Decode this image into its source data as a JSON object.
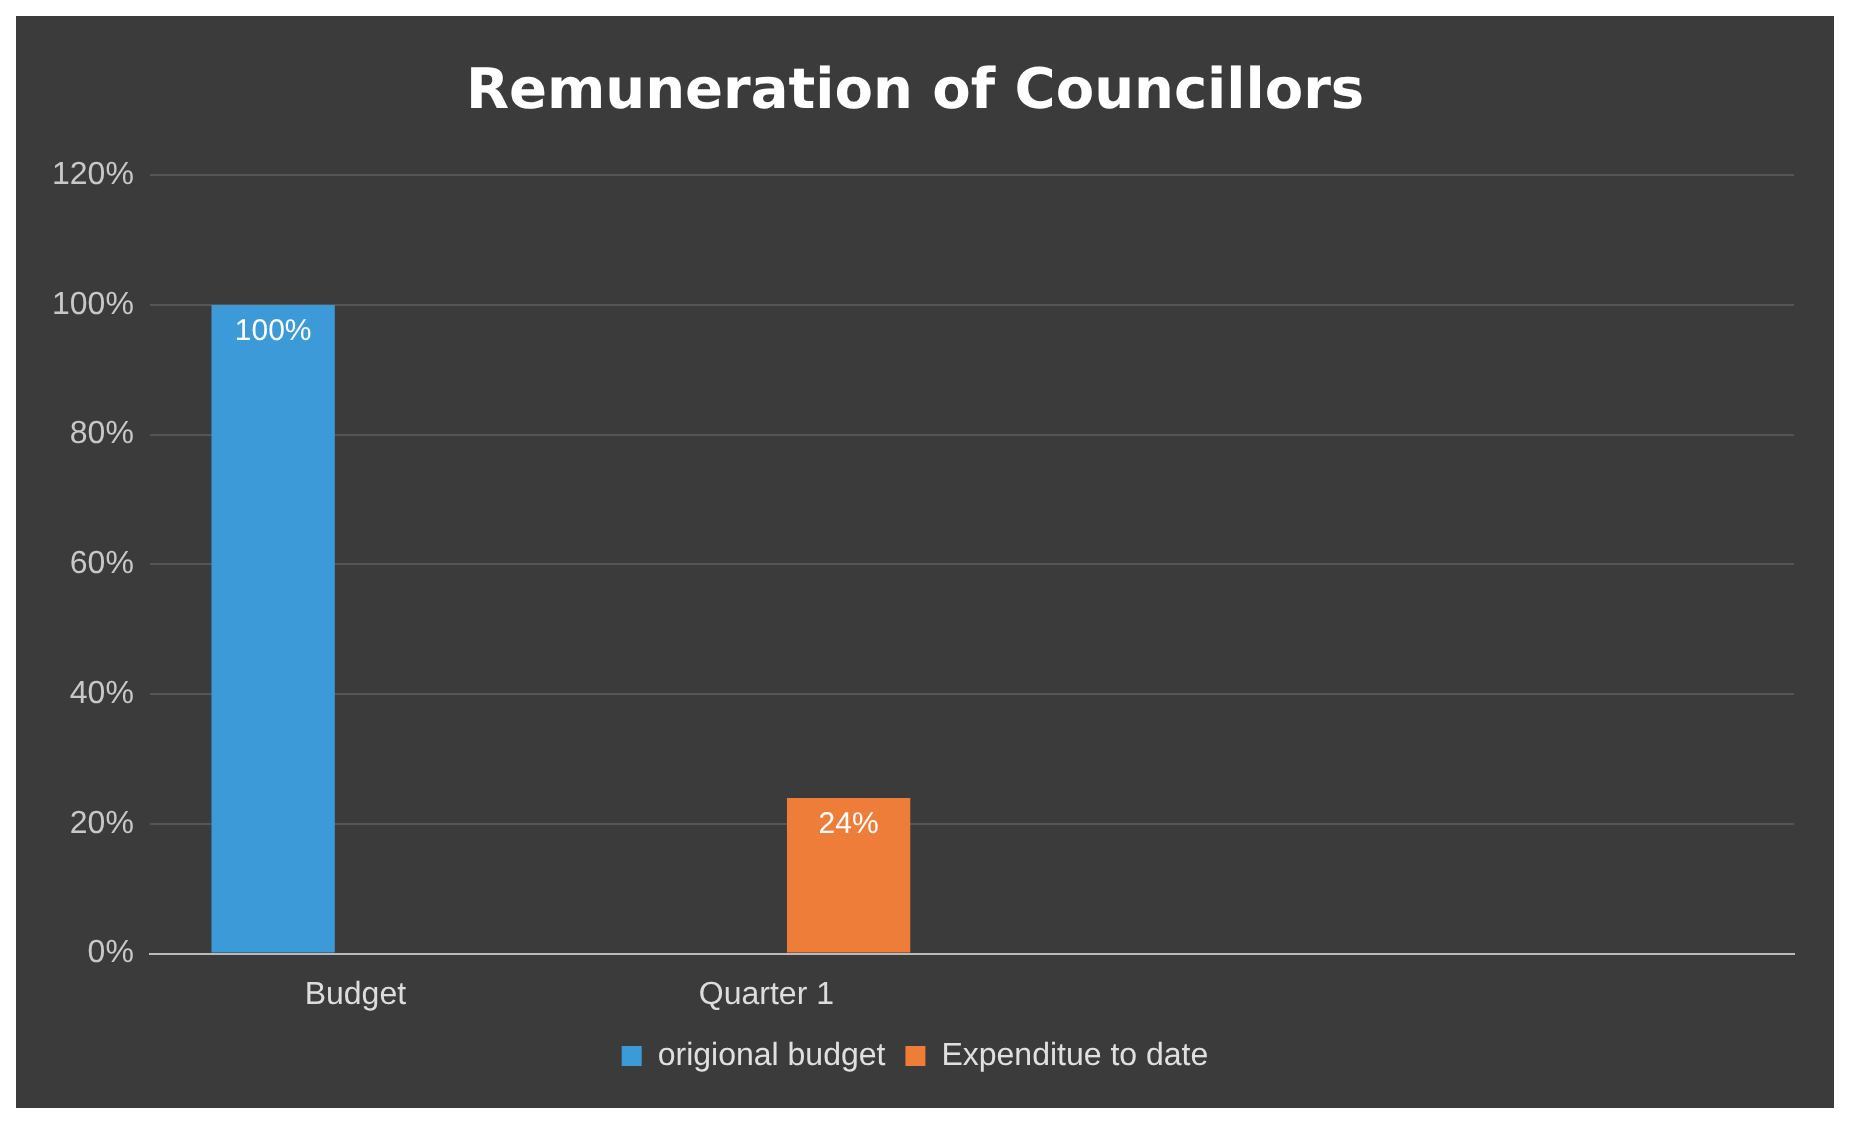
{
  "chart_data": {
    "type": "bar",
    "title": "Remuneration of Councillors",
    "categories": [
      "Budget",
      "Quarter 1",
      null,
      null
    ],
    "series": [
      {
        "name": "origional budget",
        "color": "#3d9ad9",
        "values": [
          100,
          null,
          null,
          null
        ],
        "value_labels": [
          "100%",
          null,
          null,
          null
        ]
      },
      {
        "name": "Expenditue to date",
        "color": "#ef7d3a",
        "values": [
          null,
          24,
          null,
          null
        ],
        "value_labels": [
          null,
          "24%",
          null,
          null
        ]
      }
    ],
    "ylim": [
      0,
      120
    ],
    "yticks": [
      {
        "value": 0,
        "label": "0%"
      },
      {
        "value": 20,
        "label": "20%"
      },
      {
        "value": 40,
        "label": "40%"
      },
      {
        "value": 60,
        "label": "60%"
      },
      {
        "value": 80,
        "label": "80%"
      },
      {
        "value": 100,
        "label": "100%"
      },
      {
        "value": 120,
        "label": "120%"
      }
    ],
    "grid": "y",
    "legend": "bottom"
  }
}
